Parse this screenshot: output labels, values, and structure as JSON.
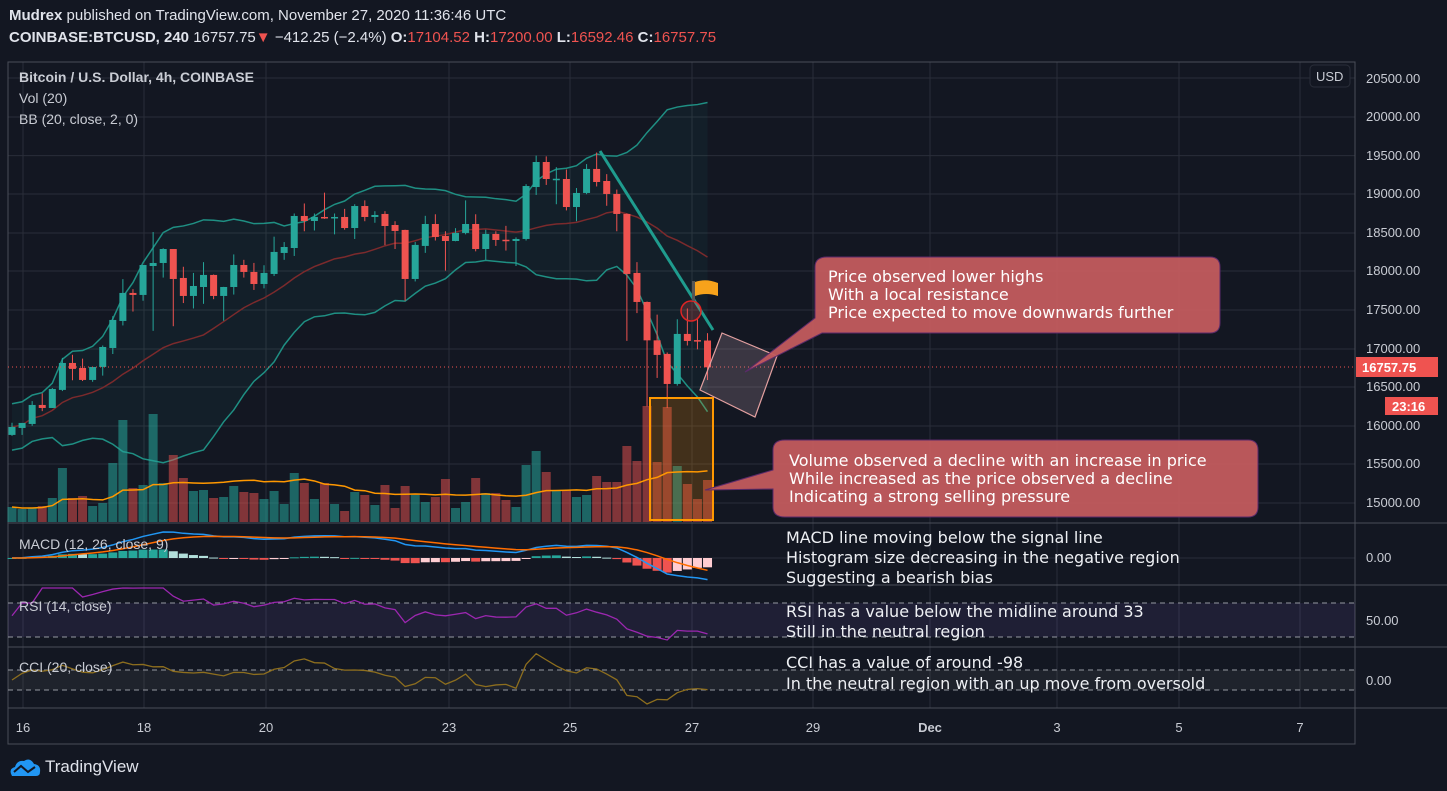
{
  "header": {
    "author": "Mudrex",
    "published": "published on TradingView.com, November 27, 2020 11:36:46 UTC"
  },
  "ticker": {
    "symbol": "COINBASE:BTCUSD, 240",
    "last": "16757.75",
    "change_icon": "down-triangle",
    "change": "−412.25 (−2.4%)",
    "o_label": "O:",
    "o": "17104.52",
    "h_label": "H:",
    "h": "17200.00",
    "l_label": "L:",
    "l": "16592.46",
    "c_label": "C:",
    "c": "16757.75"
  },
  "legend": {
    "title": "Bitcoin / U.S. Dollar, 4h, COINBASE",
    "vol": "Vol (20)",
    "bb": "BB (20, close, 2, 0)",
    "macd": "MACD (12, 26, close, 9)",
    "rsi": "RSI (14, close)",
    "cci": "CCI (20, close)"
  },
  "price_axis": {
    "currency": "USD",
    "labels": [
      "20500.00",
      "20000.00",
      "19500.00",
      "19000.00",
      "18500.00",
      "18000.00",
      "17500.00",
      "17000.00",
      "16500.00",
      "16000.00",
      "15500.00",
      "15000.00"
    ],
    "last_price": "16757.75",
    "countdown": "23:16",
    "macd_zero": "0.00",
    "rsi_mid": "50.00",
    "cci_zero": "0.00"
  },
  "time_axis": {
    "labels": [
      "16",
      "18",
      "20",
      "23",
      "25",
      "27",
      "29",
      "Dec",
      "3",
      "5",
      "7"
    ]
  },
  "annotations": {
    "callout_resistance": [
      "Price observed lower highs",
      "With a local resistance",
      "Price expected to move downwards further"
    ],
    "callout_volume": [
      "Volume observed a decline with an increase in price",
      "While increased as the price observed a decline",
      "Indicating a strong selling pressure"
    ],
    "macd_note": [
      "MACD line moving below the signal line",
      "Histogram size decreasing in the negative region",
      "Suggesting a bearish bias"
    ],
    "rsi_note": [
      "RSI has a value below the midline around 33",
      "Still in the neutral region"
    ],
    "cci_note": [
      "CCI has a value of around -98",
      "In the neutral region with an up move from oversold"
    ],
    "flag_color": "#f7a21b",
    "callout_color": "#c25b5e"
  },
  "logo": {
    "text": "TradingView"
  },
  "chart_data": {
    "type": "candlestick",
    "title": "Bitcoin / U.S. Dollar, 4h, COINBASE",
    "interval": "4h",
    "ylim": [
      14800,
      20600
    ],
    "colors": {
      "up": "#26a69a",
      "down": "#ef5350",
      "bb": "#1f8f83",
      "bb_basis": "#7b2a2c",
      "vol_ma": "#ff9800",
      "macd": "#2196f3",
      "signal": "#ff6d00",
      "rsi": "#9c27b0",
      "cci": "#8d6e1e"
    },
    "ohlc": [
      [
        15882,
        16040,
        15870,
        15985
      ],
      [
        15972,
        16037,
        15882,
        16037
      ],
      [
        16024,
        16320,
        16000,
        16270
      ],
      [
        16270,
        16420,
        16190,
        16231
      ],
      [
        16231,
        16490,
        16231,
        16477
      ],
      [
        16465,
        16880,
        16450,
        16814
      ],
      [
        16814,
        16920,
        16590,
        16737
      ],
      [
        16749,
        16870,
        16580,
        16594
      ],
      [
        16594,
        16762,
        16570,
        16762
      ],
      [
        16762,
        17040,
        16650,
        17021
      ],
      [
        17008,
        17420,
        16930,
        17371
      ],
      [
        17358,
        17900,
        17300,
        17721
      ],
      [
        17721,
        17770,
        17480,
        17695
      ],
      [
        17695,
        18083,
        17620,
        18083
      ],
      [
        18070,
        18510,
        17230,
        18109
      ],
      [
        18109,
        18300,
        17920,
        18290
      ],
      [
        18290,
        18290,
        17290,
        17902
      ],
      [
        17915,
        18060,
        17590,
        17682
      ],
      [
        17682,
        17980,
        17520,
        17811
      ],
      [
        17798,
        18120,
        17580,
        17954
      ],
      [
        17954,
        17960,
        17640,
        17682
      ],
      [
        17682,
        17800,
        17360,
        17798
      ],
      [
        17798,
        18220,
        17700,
        18083
      ],
      [
        18083,
        18150,
        17920,
        17993
      ],
      [
        17993,
        18110,
        17760,
        17837
      ],
      [
        17837,
        18080,
        17780,
        17980
      ],
      [
        17967,
        18450,
        17940,
        18252
      ],
      [
        18239,
        18380,
        18150,
        18316
      ],
      [
        18303,
        18750,
        18200,
        18718
      ],
      [
        18718,
        18880,
        18520,
        18653
      ],
      [
        18653,
        18750,
        18530,
        18705
      ],
      [
        18705,
        19020,
        18680,
        18700
      ],
      [
        18700,
        18750,
        18480,
        18705
      ],
      [
        18705,
        18810,
        18540,
        18562
      ],
      [
        18562,
        18870,
        18420,
        18847
      ],
      [
        18847,
        18920,
        18650,
        18705
      ],
      [
        18705,
        18780,
        18630,
        18731
      ],
      [
        18744,
        18780,
        18340,
        18588
      ],
      [
        18601,
        18650,
        18290,
        18524
      ],
      [
        18537,
        18540,
        17620,
        17902
      ],
      [
        17902,
        18380,
        17870,
        18343
      ],
      [
        18330,
        18720,
        18240,
        18614
      ],
      [
        18614,
        18740,
        18400,
        18446
      ],
      [
        18459,
        18520,
        18010,
        18394
      ],
      [
        18394,
        18560,
        18390,
        18498
      ],
      [
        18498,
        18920,
        18480,
        18614
      ],
      [
        18614,
        18740,
        18260,
        18290
      ],
      [
        18290,
        18540,
        18150,
        18485
      ],
      [
        18485,
        18520,
        18330,
        18407
      ],
      [
        18410,
        18590,
        18270,
        18400
      ],
      [
        18394,
        18440,
        18070,
        18420
      ],
      [
        18420,
        19130,
        18400,
        19106
      ],
      [
        19093,
        19500,
        18990,
        19417
      ],
      [
        19417,
        19490,
        19120,
        19197
      ],
      [
        19197,
        19350,
        18870,
        19200
      ],
      [
        19197,
        19320,
        18790,
        18834
      ],
      [
        18834,
        19080,
        18650,
        19016
      ],
      [
        19016,
        19390,
        19000,
        19327
      ],
      [
        19327,
        19540,
        19100,
        19158
      ],
      [
        19171,
        19260,
        18850,
        19003
      ],
      [
        19003,
        19060,
        18520,
        18744
      ],
      [
        18744,
        18750,
        17100,
        17967
      ],
      [
        17980,
        18120,
        17460,
        17604
      ],
      [
        17604,
        17610,
        16250,
        17107
      ],
      [
        17107,
        17440,
        16620,
        16918
      ],
      [
        16931,
        16950,
        16230,
        16542
      ],
      [
        16542,
        17380,
        16520,
        17190
      ],
      [
        17190,
        17520,
        17040,
        17099
      ],
      [
        17110,
        17400,
        16990,
        17100
      ],
      [
        17104.52,
        17200,
        16592.46,
        16757.75
      ]
    ],
    "volume_relative": [
      15,
      13,
      14,
      16,
      24,
      54,
      24,
      26,
      16,
      19,
      59,
      102,
      34,
      37,
      108,
      39,
      67,
      44,
      31,
      32,
      24,
      25,
      36,
      30,
      29,
      23,
      31,
      18,
      49,
      39,
      23,
      39,
      18,
      11,
      30,
      27,
      17,
      37,
      14,
      36,
      27,
      20,
      25,
      43,
      14,
      20,
      44,
      29,
      29,
      22,
      15,
      57,
      71,
      50,
      32,
      32,
      25,
      27,
      46,
      40,
      40,
      76,
      61,
      116,
      60,
      115,
      56,
      38,
      23,
      42
    ],
    "indicators": [
      "Vol (20)",
      "BB (20, close, 2, 0)",
      "MACD (12, 26, close, 9)",
      "RSI (14, close)",
      "CCI (20, close)"
    ]
  }
}
